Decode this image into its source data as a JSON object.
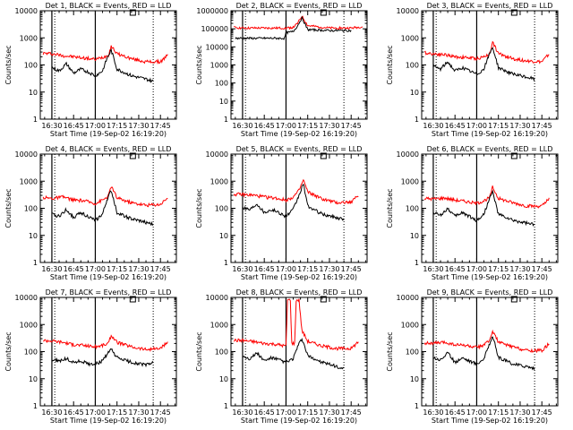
{
  "figure": {
    "background": "#ffffff",
    "axis_color": "#000000",
    "events_color": "#000000",
    "lld_color": "#ff0000"
  },
  "chart_data": [
    {
      "type": "line",
      "title": "Det 1, BLACK = Events, RED = LLD",
      "xlabel": "Start Time (19-Sep-02 16:19:20)",
      "ylabel": "Counts/sec",
      "y_scale": "log",
      "ylim": [
        1,
        10000
      ],
      "xlim_minutes_after_1630": [
        -8,
        86
      ],
      "x_tick_labels": [
        "16:30",
        "16:45",
        "17:00",
        "17:15",
        "17:30",
        "17:45"
      ],
      "y_tick_labels": [
        "1",
        "10",
        "100",
        "1000",
        "10000"
      ],
      "solid_markers": [
        "16:30",
        "17:00"
      ],
      "dotted_markers": [
        "16:32",
        "17:40"
      ],
      "series": [
        {
          "color": "#ff0000",
          "x": [
            "16:24",
            "16:30",
            "16:38",
            "16:45",
            "16:52",
            "17:00",
            "17:05",
            "17:09",
            "17:11",
            "17:15",
            "17:25",
            "17:35",
            "17:45",
            "17:50"
          ],
          "y": [
            270,
            260,
            220,
            200,
            180,
            160,
            190,
            230,
            500,
            260,
            170,
            130,
            130,
            230
          ]
        },
        {
          "color": "#000000",
          "x": [
            "16:30",
            "16:35",
            "16:40",
            "16:45",
            "16:50",
            "16:55",
            "17:00",
            "17:05",
            "17:08",
            "17:11",
            "17:15",
            "17:25",
            "17:35",
            "17:40"
          ],
          "y": [
            80,
            60,
            110,
            50,
            70,
            55,
            40,
            60,
            170,
            350,
            70,
            40,
            30,
            25
          ]
        }
      ]
    },
    {
      "type": "line",
      "title": "Det 2, BLACK = Events, RED = LLD",
      "xlabel": "Start Time (19-Sep-02 16:19:20)",
      "ylabel": "Counts/sec",
      "y_scale": "log",
      "ylim": [
        1,
        1000000
      ],
      "xlim_minutes_after_1630": [
        -8,
        86
      ],
      "x_tick_labels": [
        "16:30",
        "16:45",
        "17:00",
        "17:15",
        "17:30",
        "17:45"
      ],
      "y_tick_labels": [
        "1",
        "10",
        "100",
        "1000",
        "10000",
        "100000",
        "1000000"
      ],
      "solid_markers": [
        "16:30",
        "17:00"
      ],
      "dotted_markers": [
        "16:32",
        "17:40"
      ],
      "series": [
        {
          "color": "#ff0000",
          "x": [
            "16:24",
            "16:30",
            "16:45",
            "17:00",
            "17:05",
            "17:08",
            "17:11",
            "17:15",
            "17:30",
            "17:45",
            "17:53"
          ],
          "y": [
            120000,
            110000,
            110000,
            110000,
            120000,
            200000,
            500000,
            150000,
            110000,
            110000,
            130000
          ]
        },
        {
          "color": "#000000",
          "x": [
            "16:25",
            "16:32",
            "16:45",
            "16:59",
            "17:00",
            "17:05",
            "17:08",
            "17:11",
            "17:15",
            "17:30",
            "17:45"
          ],
          "y": [
            30000,
            30000,
            30000,
            30000,
            60000,
            70000,
            150000,
            400000,
            90000,
            80000,
            80000
          ]
        }
      ]
    },
    {
      "type": "line",
      "title": "Det 3, BLACK = Events, RED = LLD",
      "xlabel": "Start Time (19-Sep-02 16:19:20)",
      "ylabel": "Counts/sec",
      "y_scale": "log",
      "ylim": [
        1,
        10000
      ],
      "xlim_minutes_after_1630": [
        -8,
        86
      ],
      "x_tick_labels": [
        "16:30",
        "16:45",
        "17:00",
        "17:15",
        "17:30",
        "17:45"
      ],
      "y_tick_labels": [
        "1",
        "10",
        "100",
        "1000",
        "10000"
      ],
      "solid_markers": [
        "16:30",
        "17:00"
      ],
      "dotted_markers": [
        "16:32",
        "17:40"
      ],
      "series": [
        {
          "color": "#ff0000",
          "x": [
            "16:24",
            "16:30",
            "16:38",
            "16:45",
            "16:52",
            "17:00",
            "17:05",
            "17:09",
            "17:11",
            "17:15",
            "17:25",
            "17:35",
            "17:45",
            "17:50"
          ],
          "y": [
            280,
            260,
            240,
            200,
            190,
            170,
            200,
            260,
            700,
            260,
            170,
            140,
            130,
            250
          ]
        },
        {
          "color": "#000000",
          "x": [
            "16:30",
            "16:35",
            "16:40",
            "16:45",
            "16:50",
            "16:55",
            "17:00",
            "17:05",
            "17:08",
            "17:11",
            "17:15",
            "17:25",
            "17:35",
            "17:40"
          ],
          "y": [
            90,
            70,
            130,
            60,
            80,
            60,
            45,
            70,
            200,
            450,
            80,
            45,
            35,
            30
          ]
        }
      ]
    },
    {
      "type": "line",
      "title": "Det 4, BLACK = Events, RED = LLD",
      "xlabel": "Start Time (19-Sep-02 16:19:20)",
      "ylabel": "Counts/sec",
      "y_scale": "log",
      "ylim": [
        1,
        10000
      ],
      "xlim_minutes_after_1630": [
        -8,
        86
      ],
      "x_tick_labels": [
        "16:30",
        "16:45",
        "17:00",
        "17:15",
        "17:30",
        "17:45"
      ],
      "y_tick_labels": [
        "1",
        "10",
        "100",
        "1000",
        "10000"
      ],
      "solid_markers": [
        "16:30",
        "17:00"
      ],
      "dotted_markers": [
        "16:32",
        "17:40"
      ],
      "series": [
        {
          "color": "#ff0000",
          "x": [
            "16:24",
            "16:30",
            "16:38",
            "16:45",
            "16:52",
            "17:00",
            "17:05",
            "17:09",
            "17:11",
            "17:15",
            "17:25",
            "17:35",
            "17:45",
            "17:50"
          ],
          "y": [
            250,
            230,
            260,
            200,
            190,
            150,
            200,
            280,
            650,
            240,
            160,
            130,
            140,
            250
          ]
        },
        {
          "color": "#000000",
          "x": [
            "16:30",
            "16:35",
            "16:40",
            "16:45",
            "16:50",
            "16:55",
            "17:00",
            "17:05",
            "17:08",
            "17:11",
            "17:15",
            "17:25",
            "17:35",
            "17:40"
          ],
          "y": [
            60,
            50,
            90,
            45,
            70,
            50,
            35,
            60,
            200,
            450,
            70,
            40,
            30,
            25
          ]
        }
      ]
    },
    {
      "type": "line",
      "title": "Det 5, BLACK = Events, RED = LLD",
      "xlabel": "Start Time (19-Sep-02 16:19:20)",
      "ylabel": "Counts/sec",
      "y_scale": "log",
      "ylim": [
        1,
        10000
      ],
      "xlim_minutes_after_1630": [
        -8,
        86
      ],
      "x_tick_labels": [
        "16:30",
        "16:45",
        "17:00",
        "17:15",
        "17:30",
        "17:45"
      ],
      "y_tick_labels": [
        "1",
        "10",
        "100",
        "1000",
        "10000"
      ],
      "solid_markers": [
        "16:30",
        "17:00"
      ],
      "dotted_markers": [
        "16:32",
        "17:40"
      ],
      "series": [
        {
          "color": "#ff0000",
          "x": [
            "16:24",
            "16:30",
            "16:38",
            "16:45",
            "16:52",
            "17:00",
            "17:05",
            "17:09",
            "17:12",
            "17:15",
            "17:25",
            "17:35",
            "17:45",
            "17:50"
          ],
          "y": [
            330,
            320,
            300,
            260,
            240,
            200,
            260,
            450,
            1100,
            400,
            220,
            160,
            170,
            300
          ]
        },
        {
          "color": "#000000",
          "x": [
            "16:30",
            "16:35",
            "16:40",
            "16:45",
            "16:50",
            "16:55",
            "17:00",
            "17:05",
            "17:09",
            "17:12",
            "17:15",
            "17:25",
            "17:35",
            "17:40"
          ],
          "y": [
            110,
            90,
            150,
            70,
            90,
            70,
            50,
            90,
            300,
            800,
            120,
            60,
            45,
            40
          ]
        }
      ]
    },
    {
      "type": "line",
      "title": "Det 6, BLACK = Events, RED = LLD",
      "xlabel": "Start Time (19-Sep-02 16:19:20)",
      "ylabel": "Counts/sec",
      "y_scale": "log",
      "ylim": [
        1,
        10000
      ],
      "xlim_minutes_after_1630": [
        -8,
        86
      ],
      "x_tick_labels": [
        "16:30",
        "16:45",
        "17:00",
        "17:15",
        "17:30",
        "17:45"
      ],
      "y_tick_labels": [
        "1",
        "10",
        "100",
        "1000",
        "10000"
      ],
      "solid_markers": [
        "16:30",
        "17:00"
      ],
      "dotted_markers": [
        "16:32",
        "17:40"
      ],
      "series": [
        {
          "color": "#ff0000",
          "x": [
            "16:24",
            "16:30",
            "16:38",
            "16:45",
            "16:52",
            "17:00",
            "17:05",
            "17:09",
            "17:11",
            "17:15",
            "17:25",
            "17:35",
            "17:45",
            "17:50"
          ],
          "y": [
            230,
            220,
            240,
            200,
            180,
            150,
            190,
            250,
            600,
            230,
            160,
            120,
            120,
            220
          ]
        },
        {
          "color": "#000000",
          "x": [
            "16:30",
            "16:35",
            "16:40",
            "16:45",
            "16:50",
            "16:55",
            "17:00",
            "17:05",
            "17:08",
            "17:11",
            "17:15",
            "17:25",
            "17:35",
            "17:40"
          ],
          "y": [
            70,
            55,
            100,
            50,
            70,
            50,
            35,
            60,
            180,
            400,
            60,
            35,
            28,
            24
          ]
        }
      ]
    },
    {
      "type": "line",
      "title": "Det 7, BLACK = Events, RED = LLD",
      "xlabel": "Start Time (19-Sep-02 16:19:20)",
      "ylabel": "Counts/sec",
      "y_scale": "log",
      "ylim": [
        1,
        10000
      ],
      "xlim_minutes_after_1630": [
        -8,
        86
      ],
      "x_tick_labels": [
        "16:30",
        "16:45",
        "17:00",
        "17:15",
        "17:30",
        "17:45"
      ],
      "y_tick_labels": [
        "1",
        "10",
        "100",
        "1000",
        "10000"
      ],
      "solid_markers": [
        "16:30",
        "17:00"
      ],
      "dotted_markers": [
        "16:32",
        "17:40"
      ],
      "series": [
        {
          "color": "#ff0000",
          "x": [
            "16:24",
            "16:30",
            "16:38",
            "16:45",
            "16:52",
            "17:00",
            "17:05",
            "17:09",
            "17:11",
            "17:15",
            "17:25",
            "17:35",
            "17:45",
            "17:50"
          ],
          "y": [
            260,
            250,
            220,
            180,
            170,
            150,
            170,
            200,
            400,
            220,
            150,
            120,
            130,
            220
          ]
        },
        {
          "color": "#000000",
          "x": [
            "16:30",
            "16:35",
            "16:40",
            "16:45",
            "16:50",
            "16:55",
            "17:00",
            "17:05",
            "17:08",
            "17:11",
            "17:15",
            "17:25",
            "17:35",
            "17:40"
          ],
          "y": [
            50,
            45,
            55,
            40,
            45,
            35,
            35,
            45,
            80,
            120,
            60,
            40,
            32,
            40
          ]
        }
      ]
    },
    {
      "type": "line",
      "title": "Det 8, BLACK = Events, RED = LLD",
      "xlabel": "Start Time (19-Sep-02 16:19:20)",
      "ylabel": "Counts/sec",
      "y_scale": "log",
      "ylim": [
        1,
        10000
      ],
      "xlim_minutes_after_1630": [
        -8,
        86
      ],
      "x_tick_labels": [
        "16:30",
        "16:45",
        "17:00",
        "17:15",
        "17:30",
        "17:45"
      ],
      "y_tick_labels": [
        "1",
        "10",
        "100",
        "1000",
        "10000"
      ],
      "solid_markers": [
        "16:30",
        "17:00"
      ],
      "dotted_markers": [
        "16:32",
        "17:40"
      ],
      "series": [
        {
          "color": "#ff0000",
          "x": [
            "16:24",
            "16:30",
            "16:38",
            "16:45",
            "16:52",
            "17:00",
            "17:01",
            "17:03",
            "17:04",
            "17:06",
            "17:07",
            "17:09",
            "17:11",
            "17:15",
            "17:25",
            "17:35",
            "17:45",
            "17:50"
          ],
          "y": [
            260,
            260,
            230,
            200,
            190,
            160,
            8000,
            8000,
            200,
            200,
            8000,
            8000,
            600,
            240,
            160,
            130,
            130,
            230
          ]
        },
        {
          "color": "#000000",
          "x": [
            "16:30",
            "16:35",
            "16:40",
            "16:45",
            "16:50",
            "16:55",
            "17:00",
            "17:05",
            "17:08",
            "17:11",
            "17:15",
            "17:25",
            "17:35",
            "17:40"
          ],
          "y": [
            70,
            55,
            90,
            45,
            60,
            50,
            40,
            55,
            150,
            300,
            70,
            40,
            28,
            22
          ]
        }
      ]
    },
    {
      "type": "line",
      "title": "Det 9, BLACK = Events, RED = LLD",
      "xlabel": "Start Time (19-Sep-02 16:19:20)",
      "ylabel": "Counts/sec",
      "y_scale": "log",
      "ylim": [
        1,
        10000
      ],
      "xlim_minutes_after_1630": [
        -8,
        86
      ],
      "x_tick_labels": [
        "16:30",
        "16:45",
        "17:00",
        "17:15",
        "17:30",
        "17:45"
      ],
      "y_tick_labels": [
        "1",
        "10",
        "100",
        "1000",
        "10000"
      ],
      "solid_markers": [
        "16:30",
        "17:00"
      ],
      "dotted_markers": [
        "16:32",
        "17:40"
      ],
      "series": [
        {
          "color": "#ff0000",
          "x": [
            "16:24",
            "16:30",
            "16:38",
            "16:45",
            "16:52",
            "17:00",
            "17:05",
            "17:09",
            "17:11",
            "17:15",
            "17:25",
            "17:35",
            "17:45",
            "17:50"
          ],
          "y": [
            210,
            200,
            220,
            180,
            170,
            140,
            180,
            250,
            600,
            220,
            150,
            110,
            110,
            200
          ]
        },
        {
          "color": "#000000",
          "x": [
            "16:30",
            "16:35",
            "16:40",
            "16:45",
            "16:50",
            "16:55",
            "17:00",
            "17:05",
            "17:08",
            "17:11",
            "17:15",
            "17:25",
            "17:35",
            "17:40"
          ],
          "y": [
            60,
            50,
            90,
            40,
            60,
            45,
            35,
            55,
            150,
            380,
            60,
            35,
            28,
            24
          ]
        }
      ]
    }
  ]
}
